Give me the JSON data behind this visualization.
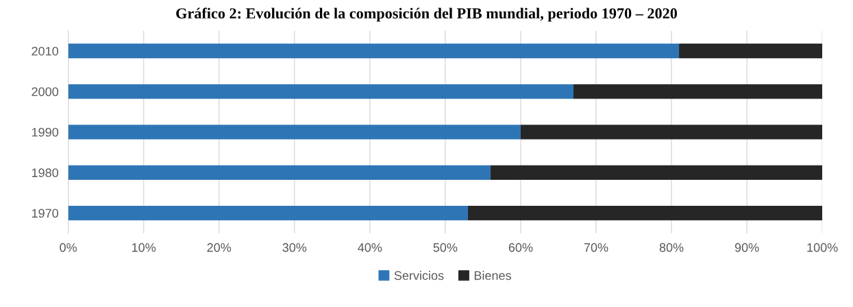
{
  "chart_data": {
    "type": "bar",
    "orientation": "horizontal",
    "stacked": true,
    "title": "Gráfico 2: Evolución de la composición del PIB mundial, periodo 1970 – 2020",
    "categories": [
      "2010",
      "2000",
      "1990",
      "1980",
      "1970"
    ],
    "series": [
      {
        "name": "Servicios",
        "color": "#2e75b6",
        "values": [
          81,
          67,
          60,
          56,
          53
        ]
      },
      {
        "name": "Bienes",
        "color": "#262626",
        "values": [
          19,
          33,
          40,
          44,
          47
        ]
      }
    ],
    "xlim": [
      0,
      100
    ],
    "xticks": [
      {
        "value": 0,
        "label": "0%"
      },
      {
        "value": 10,
        "label": "10%"
      },
      {
        "value": 20,
        "label": "20%"
      },
      {
        "value": 30,
        "label": "30%"
      },
      {
        "value": 40,
        "label": "40%"
      },
      {
        "value": 50,
        "label": "50%"
      },
      {
        "value": 60,
        "label": "60%"
      },
      {
        "value": 70,
        "label": "70%"
      },
      {
        "value": 80,
        "label": "80%"
      },
      {
        "value": 90,
        "label": "90%"
      },
      {
        "value": 100,
        "label": "100%"
      }
    ],
    "grid": "x",
    "legend": "bottom"
  }
}
